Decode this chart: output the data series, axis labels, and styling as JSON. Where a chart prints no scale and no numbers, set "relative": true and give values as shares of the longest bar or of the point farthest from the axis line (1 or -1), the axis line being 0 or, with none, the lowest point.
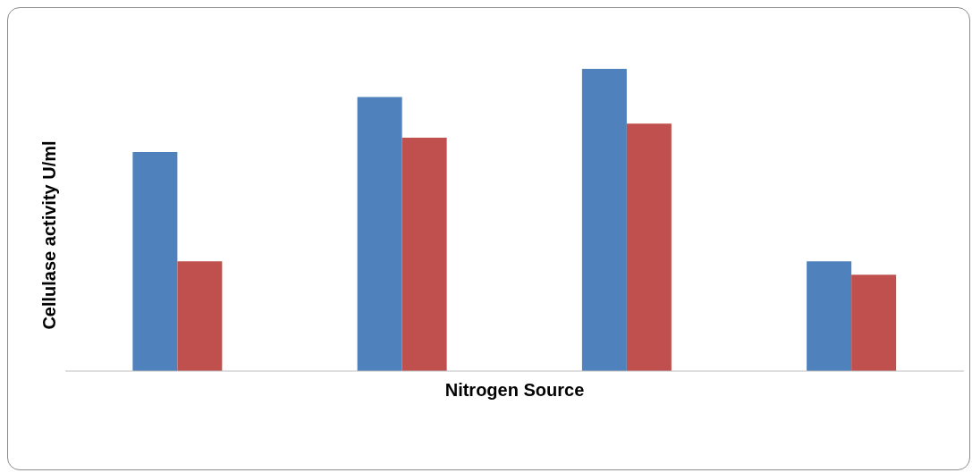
{
  "chart_data": {
    "type": "bar",
    "xlabel": "Nitrogen Source",
    "ylabel": "Cellulase activity U/ml",
    "relative": true,
    "categories": [
      null,
      null,
      null,
      null
    ],
    "series": [
      {
        "color": "#4f81bd",
        "values": [
          0.725,
          0.907,
          1,
          0.363
        ]
      },
      {
        "color": "#c0504d",
        "values": [
          0.363,
          0.772,
          0.819,
          0.319
        ]
      }
    ]
  }
}
